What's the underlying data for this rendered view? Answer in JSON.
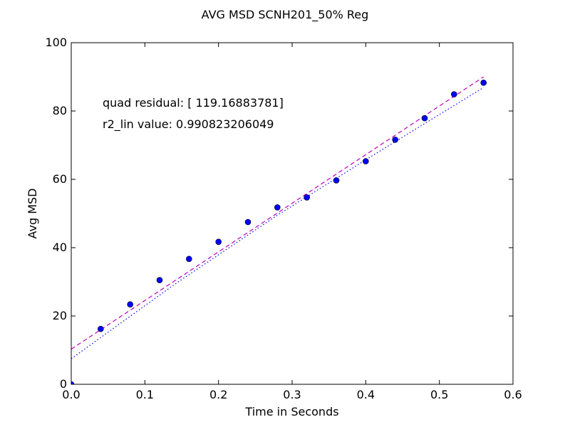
{
  "chart_data": {
    "type": "scatter",
    "title": "AVG MSD SCNH201_50% Reg",
    "xlabel": "Time in Seconds",
    "ylabel": "Avg MSD",
    "xlim": [
      0.0,
      0.6
    ],
    "ylim": [
      0,
      100
    ],
    "xticks": [
      "0.0",
      "0.1",
      "0.2",
      "0.3",
      "0.4",
      "0.5",
      "0.6"
    ],
    "yticks": [
      "0",
      "20",
      "40",
      "60",
      "80",
      "100"
    ],
    "grid": false,
    "annotations": [
      {
        "text": "quad residual: [ 119.16883781]",
        "x": 0.043,
        "y": 82
      },
      {
        "text": "r2_lin value: 0.990823206049",
        "x": 0.043,
        "y": 75.5
      }
    ],
    "points": {
      "color": "#0000ff",
      "x": [
        0.0,
        0.04,
        0.08,
        0.12,
        0.16,
        0.2,
        0.24,
        0.28,
        0.32,
        0.36,
        0.4,
        0.44,
        0.48,
        0.52,
        0.56
      ],
      "y": [
        0.0,
        16.2,
        23.4,
        30.5,
        36.7,
        41.7,
        47.5,
        51.8,
        54.7,
        59.7,
        65.3,
        71.6,
        77.9,
        84.9,
        88.3
      ]
    },
    "fits": [
      {
        "kind": "linear",
        "color": "#bf00bf",
        "dash": "dashed",
        "x": [
          0.0,
          0.56
        ],
        "y": [
          10.3,
          90.0
        ]
      },
      {
        "kind": "quadratic",
        "color": "#0000ff",
        "dash": "dotted",
        "x": [
          0.0,
          0.14,
          0.28,
          0.42,
          0.56
        ],
        "y": [
          7.5,
          29.2,
          49.5,
          68.4,
          86.9
        ]
      }
    ]
  }
}
